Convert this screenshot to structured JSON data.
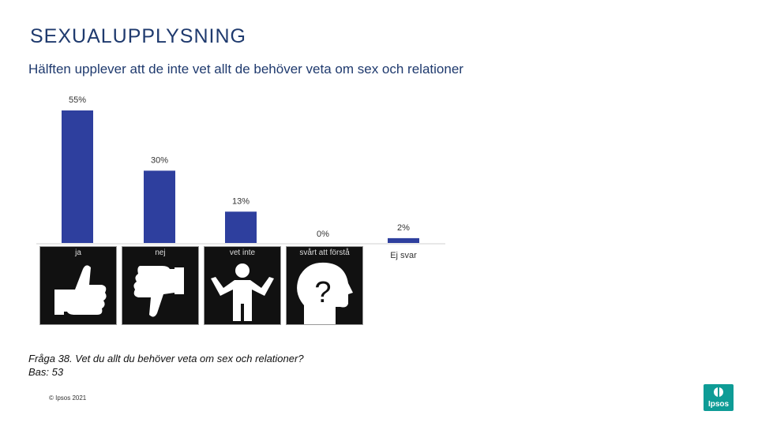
{
  "title": "SEXUALUPPLYSNING",
  "subtitle": "Hälften upplever att de inte vet allt de behöver veta om sex och relationer",
  "chart_data": {
    "type": "bar",
    "categories": [
      "ja",
      "nej",
      "vet inte",
      "svårt att förstå",
      "Ej svar"
    ],
    "values": [
      55,
      30,
      13,
      0,
      2
    ],
    "data_labels": [
      "55%",
      "30%",
      "13%",
      "0%",
      "2%"
    ],
    "ylim": [
      0,
      60
    ],
    "bar_color": "#2e3f9e"
  },
  "categories": {
    "ja": "ja",
    "nej": "nej",
    "vet_inte": "vet inte",
    "svart": "svårt att förstå",
    "ej_svar": "Ej svar"
  },
  "icons": [
    "thumbs-up-icon",
    "thumbs-down-icon",
    "shrug-person-icon",
    "head-question-icon"
  ],
  "footer": {
    "question": "Fråga 38. Vet du allt du behöver veta om sex och relationer?",
    "base": "Bas: 53",
    "copyright": "© Ipsos 2021"
  },
  "logo_text": "Ipsos",
  "colors": {
    "accent": "#1f3a6e",
    "logo": "#0e9c96"
  }
}
